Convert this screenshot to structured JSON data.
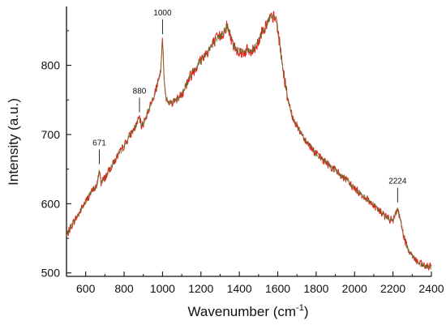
{
  "chart_data": {
    "type": "line",
    "title": "",
    "xlabel": "Wavenumber (cm",
    "xlabel_sup": "-1",
    "xlabel_close": ")",
    "ylabel": "Intensity (a.u.)",
    "xlim": [
      500,
      2400
    ],
    "ylim": [
      495,
      885
    ],
    "x_ticks": [
      600,
      800,
      1000,
      1200,
      1400,
      1600,
      1800,
      2000,
      2200,
      2400
    ],
    "y_ticks": [
      500,
      600,
      700,
      800
    ],
    "grid": false,
    "legend": "none",
    "colors": {
      "signal": "#e8201c",
      "overlay": "#4a7a2a",
      "axis": "#111111"
    },
    "series": [
      {
        "x": [
          500,
          520,
          540,
          560,
          580,
          600,
          620,
          640,
          660,
          671,
          680,
          700,
          720,
          740,
          760,
          780,
          800,
          820,
          840,
          860,
          880,
          890,
          900,
          920,
          940,
          960,
          980,
          990,
          1000,
          1010,
          1020,
          1040,
          1060,
          1080,
          1100,
          1120,
          1140,
          1160,
          1180,
          1200,
          1220,
          1240,
          1260,
          1280,
          1300,
          1320,
          1335,
          1350,
          1370,
          1400,
          1420,
          1440,
          1460,
          1480,
          1500,
          1520,
          1540,
          1560,
          1580,
          1595,
          1610,
          1630,
          1650,
          1670,
          1700,
          1750,
          1800,
          1850,
          1900,
          1950,
          2000,
          2050,
          2100,
          2150,
          2180,
          2200,
          2215,
          2224,
          2235,
          2250,
          2270,
          2300,
          2330,
          2360,
          2400
        ],
        "y": [
          553,
          565,
          575,
          583,
          594,
          603,
          613,
          620,
          627,
          650,
          630,
          638,
          647,
          657,
          666,
          675,
          684,
          694,
          703,
          712,
          725,
          711,
          716,
          730,
          745,
          760,
          778,
          790,
          838,
          770,
          752,
          745,
          748,
          752,
          760,
          770,
          782,
          792,
          800,
          808,
          815,
          822,
          830,
          838,
          842,
          848,
          858,
          845,
          828,
          820,
          818,
          822,
          818,
          825,
          835,
          850,
          858,
          868,
          870,
          862,
          830,
          790,
          755,
          730,
          712,
          690,
          672,
          660,
          648,
          636,
          622,
          610,
          598,
          584,
          578,
          575,
          585,
          595,
          580,
          560,
          540,
          525,
          515,
          510,
          508
        ]
      }
    ],
    "annotations": [
      {
        "x": 671,
        "y": 650,
        "text": "671"
      },
      {
        "x": 880,
        "y": 725,
        "text": "880"
      },
      {
        "x": 1000,
        "y": 838,
        "text": "1000"
      },
      {
        "x": 2224,
        "y": 595,
        "text": "2224"
      }
    ]
  }
}
